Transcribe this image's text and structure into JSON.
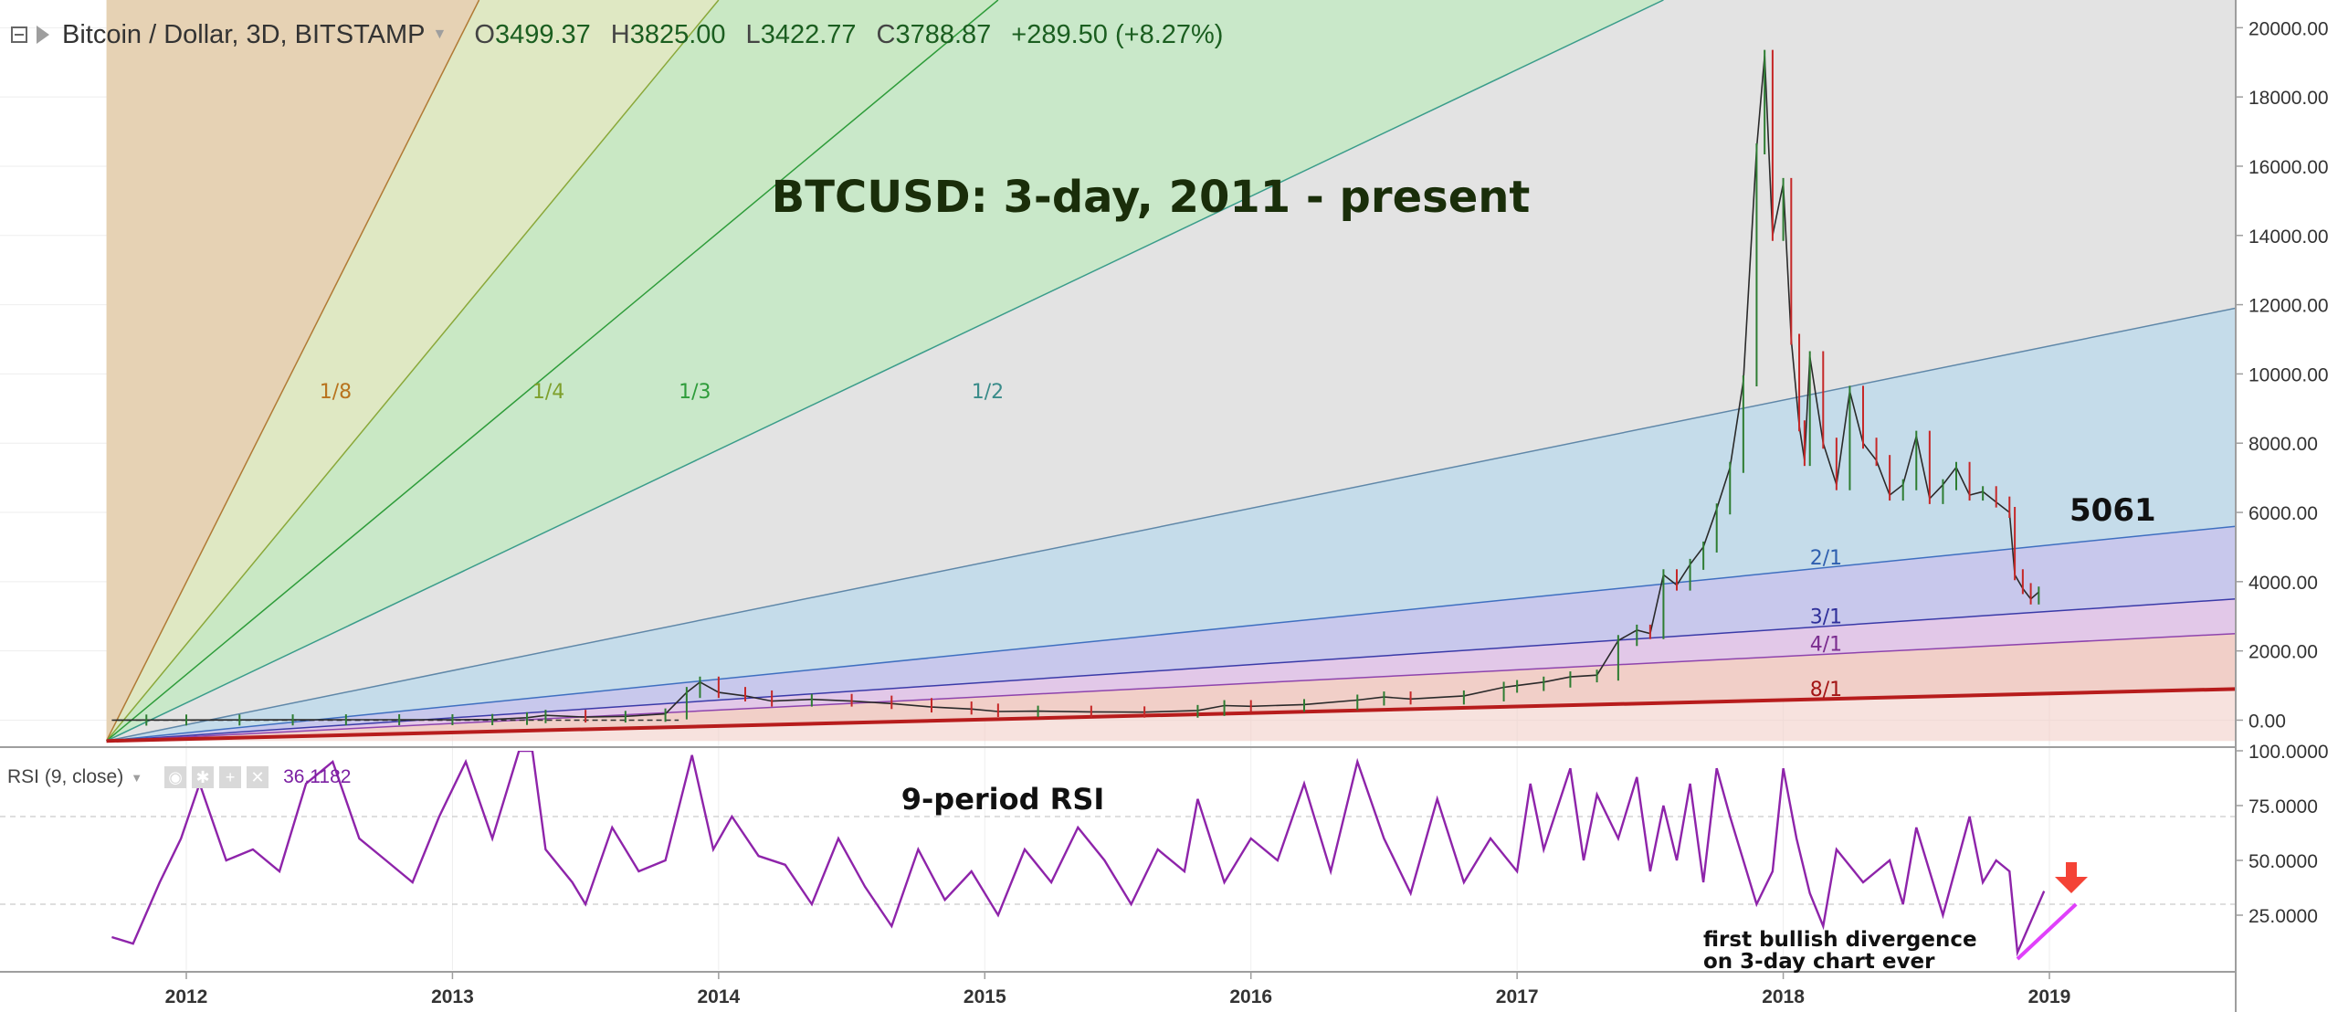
{
  "header": {
    "symbol": "Bitcoin / Dollar, 3D, BITSTAMP",
    "ohlc": [
      {
        "key": "O",
        "value": "3499.37"
      },
      {
        "key": "H",
        "value": "3825.00"
      },
      {
        "key": "L",
        "value": "3422.77"
      },
      {
        "key": "C",
        "value": "3788.87"
      }
    ],
    "change": "+289.50 (+8.27%)"
  },
  "rsi_legend": {
    "label": "RSI (9, close)",
    "value": "36.1182"
  },
  "colors": {
    "fan_1_8": "#e6d2b4",
    "fan_1_4": "#dfe8c3",
    "fan_1_3": "#c9e8c4",
    "fan_1_2": "#c9e8c9",
    "fan_1_1": "#e3e3e3",
    "fan_2_1": "#c5dcea",
    "fan_3_1": "#c8c8ec",
    "fan_4_1": "#e2c8e8",
    "fan_8_1": "#f1cfc8",
    "rsi_line": "#8e24aa",
    "base_line": "#b71c1c",
    "arrow": "#f44336",
    "divergence": "#e040fb"
  },
  "chart_data": [
    {
      "type": "line",
      "subtype": "candlestick-with-gann-fan",
      "title": "BTCUSD: 3-day, 2011 - present",
      "y_axis": {
        "ticks": [
          "20000.00",
          "18000.00",
          "16000.00",
          "14000.00",
          "12000.00",
          "10000.00",
          "8000.00",
          "6000.00",
          "4000.00",
          "2000.00",
          "0.00"
        ],
        "ylim": [
          -700,
          20800
        ],
        "position": "right"
      },
      "x_axis": {
        "ticks": [
          "2012",
          "2013",
          "2014",
          "2015",
          "2016",
          "2017",
          "2018",
          "2019"
        ],
        "xlim": [
          2011.3,
          2019.7
        ]
      },
      "fan_origin": {
        "x": 2011.7,
        "y": -600
      },
      "fan_lines": [
        {
          "label": "1/8",
          "end_x": 2013.1,
          "end_y": 20800,
          "color": "#b07a35",
          "label_x": 2012.5,
          "label_y": 9300,
          "label_color": "#b8731e"
        },
        {
          "label": "1/4",
          "end_x": 2014.0,
          "end_y": 20800,
          "color": "#8aa83a",
          "label_x": 2013.3,
          "label_y": 9300,
          "label_color": "#7ea02c"
        },
        {
          "label": "1/3",
          "end_x": 2015.05,
          "end_y": 20800,
          "color": "#2e9c3a",
          "label_x": 2013.85,
          "label_y": 9300,
          "label_color": "#2e9c3a"
        },
        {
          "label": "1/2",
          "end_x": 2017.55,
          "end_y": 20800,
          "color": "#3a9c8a",
          "label_x": 2014.95,
          "label_y": 9300,
          "label_color": "#3a8c8a"
        },
        {
          "label": "",
          "end_x": 2019.7,
          "end_y": 11900,
          "color": "#5f87a8",
          "label_x": null,
          "label_y": null,
          "label_color": "#5f87a8"
        },
        {
          "label": "2/1",
          "end_x": 2019.7,
          "end_y": 5600,
          "color": "#3f6fc0",
          "label_x": 2018.1,
          "label_y": 4500,
          "label_color": "#2f5faf"
        },
        {
          "label": "3/1",
          "end_x": 2019.7,
          "end_y": 3500,
          "color": "#3a3aa8",
          "label_x": 2018.1,
          "label_y": 2800,
          "label_color": "#2f2f9a"
        },
        {
          "label": "4/1",
          "end_x": 2019.7,
          "end_y": 2500,
          "color": "#8e44ad",
          "label_x": 2018.1,
          "label_y": 2000,
          "label_color": "#7b2c8f"
        },
        {
          "label": "8/1",
          "end_x": 2019.7,
          "end_y": 900,
          "color": "#b71c1c",
          "label_x": 2018.1,
          "label_y": 700,
          "label_color": "#a31515"
        }
      ],
      "annotations": [
        {
          "text": "5061",
          "x": 2018.82,
          "y": 5700
        }
      ],
      "series": [
        {
          "x": [
            2011.72,
            2011.85,
            2012.0,
            2012.2,
            2012.4,
            2012.6,
            2012.8,
            2013.0,
            2013.15,
            2013.28,
            2013.35,
            2013.5,
            2013.65,
            2013.8,
            2013.88,
            2013.93,
            2014.0,
            2014.1,
            2014.2,
            2014.35,
            2014.5,
            2014.65,
            2014.8,
            2014.95,
            2015.05,
            2015.2,
            2015.4,
            2015.6,
            2015.8,
            2015.9,
            2016.0,
            2016.2,
            2016.4,
            2016.5,
            2016.6,
            2016.8,
            2016.95,
            2017.0,
            2017.1,
            2017.2,
            2017.3,
            2017.38,
            2017.45,
            2017.5,
            2017.55,
            2017.6,
            2017.65,
            2017.7,
            2017.75,
            2017.8,
            2017.85,
            2017.9,
            2017.93,
            2017.96,
            2018.0,
            2018.03,
            2018.06,
            2018.08,
            2018.1,
            2018.15,
            2018.2,
            2018.25,
            2018.3,
            2018.35,
            2018.4,
            2018.45,
            2018.5,
            2018.55,
            2018.6,
            2018.65,
            2018.7,
            2018.75,
            2018.8,
            2018.85,
            2018.87,
            2018.9,
            2018.93,
            2018.96
          ],
          "y": [
            0,
            4,
            5,
            6,
            9,
            11,
            12,
            13,
            20,
            70,
            140,
            90,
            110,
            180,
            800,
            1100,
            800,
            700,
            550,
            600,
            550,
            480,
            380,
            320,
            250,
            260,
            240,
            230,
            280,
            420,
            400,
            450,
            580,
            670,
            610,
            700,
            950,
            1000,
            1100,
            1250,
            1300,
            2300,
            2600,
            2500,
            4200,
            3900,
            4500,
            5000,
            6100,
            7300,
            9800,
            16500,
            19200,
            14000,
            15500,
            11000,
            8500,
            7500,
            10500,
            8000,
            6800,
            9500,
            8000,
            7500,
            6500,
            6800,
            8200,
            6400,
            6800,
            7300,
            6500,
            6600,
            6300,
            6000,
            4200,
            3800,
            3500,
            3700
          ]
        }
      ]
    },
    {
      "type": "line",
      "title": "9-period RSI",
      "y_axis": {
        "ticks": [
          "100.0000",
          "75.0000",
          "50.0000",
          "25.0000"
        ],
        "ylim": [
          0,
          100
        ],
        "dashed_levels": [
          70,
          30
        ],
        "position": "right"
      },
      "annotations": [
        {
          "text": "first bullish divergence",
          "x": 2017.65,
          "y": 16
        },
        {
          "text": "on 3-day chart ever",
          "x": 2017.65,
          "y": 6
        }
      ],
      "divergence_line": {
        "x": [
          2018.88,
          2019.1
        ],
        "y": [
          5,
          30
        ]
      },
      "series": [
        {
          "name": "RSI (9, close)",
          "x": [
            2011.72,
            2011.8,
            2011.9,
            2011.98,
            2012.05,
            2012.15,
            2012.25,
            2012.35,
            2012.45,
            2012.55,
            2012.65,
            2012.75,
            2012.85,
            2012.95,
            2013.05,
            2013.15,
            2013.25,
            2013.3,
            2013.35,
            2013.45,
            2013.5,
            2013.6,
            2013.7,
            2013.8,
            2013.9,
            2013.98,
            2014.05,
            2014.15,
            2014.25,
            2014.35,
            2014.45,
            2014.55,
            2014.65,
            2014.75,
            2014.85,
            2014.95,
            2015.05,
            2015.15,
            2015.25,
            2015.35,
            2015.45,
            2015.55,
            2015.65,
            2015.75,
            2015.8,
            2015.9,
            2016.0,
            2016.1,
            2016.2,
            2016.3,
            2016.4,
            2016.5,
            2016.6,
            2016.7,
            2016.8,
            2016.9,
            2017.0,
            2017.05,
            2017.1,
            2017.2,
            2017.25,
            2017.3,
            2017.38,
            2017.45,
            2017.5,
            2017.55,
            2017.6,
            2017.65,
            2017.7,
            2017.75,
            2017.8,
            2017.9,
            2017.96,
            2018.0,
            2018.05,
            2018.1,
            2018.15,
            2018.2,
            2018.3,
            2018.4,
            2018.45,
            2018.5,
            2018.6,
            2018.7,
            2018.75,
            2018.8,
            2018.85,
            2018.88,
            2018.93,
            2018.98
          ],
          "y": [
            15,
            12,
            40,
            60,
            85,
            50,
            55,
            45,
            85,
            95,
            60,
            50,
            40,
            70,
            95,
            60,
            100,
            100,
            55,
            40,
            30,
            65,
            45,
            50,
            98,
            55,
            70,
            52,
            48,
            30,
            60,
            38,
            20,
            55,
            32,
            45,
            25,
            55,
            40,
            65,
            50,
            30,
            55,
            45,
            78,
            40,
            60,
            50,
            85,
            45,
            95,
            60,
            35,
            78,
            40,
            60,
            45,
            85,
            55,
            92,
            50,
            80,
            60,
            88,
            45,
            75,
            50,
            85,
            40,
            92,
            70,
            30,
            45,
            92,
            60,
            35,
            20,
            55,
            40,
            50,
            30,
            65,
            25,
            70,
            40,
            50,
            45,
            8,
            22,
            36
          ]
        }
      ]
    }
  ]
}
